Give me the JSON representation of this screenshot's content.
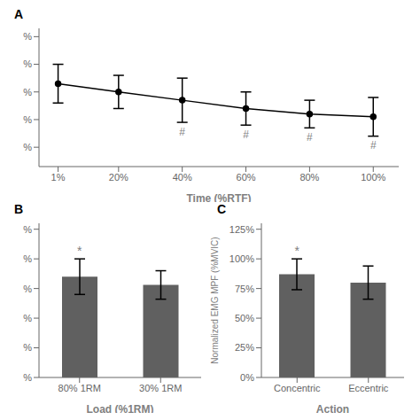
{
  "chart_data": [
    {
      "type": "line",
      "title": "A",
      "x": [
        1,
        20,
        40,
        60,
        80,
        100
      ],
      "values": [
        88,
        85,
        82,
        79,
        77,
        76
      ],
      "errors": [
        7,
        6,
        8,
        6,
        5,
        7
      ],
      "color": "#000000",
      "marker": "circle",
      "xlabel": "Time (%RTF)",
      "xlim": [
        -5,
        108
      ],
      "xticks": [
        {
          "value": 1,
          "label": "1%"
        },
        {
          "value": 20,
          "label": "20%"
        },
        {
          "value": 40,
          "label": "40%"
        },
        {
          "value": 60,
          "label": "60%"
        },
        {
          "value": 80,
          "label": "80%"
        },
        {
          "value": 100,
          "label": "100%"
        }
      ],
      "ylim": [
        58,
        108
      ],
      "yticks": [
        {
          "value": 65,
          "label": "%"
        },
        {
          "value": 75,
          "label": "%"
        },
        {
          "value": 85,
          "label": "%"
        },
        {
          "value": 95,
          "label": "%"
        },
        {
          "value": 105,
          "label": "%"
        }
      ],
      "annotations": [
        {
          "x": 40,
          "text": "#"
        },
        {
          "x": 60,
          "text": "#"
        },
        {
          "x": 80,
          "text": "#"
        },
        {
          "x": 100,
          "text": "#"
        }
      ]
    },
    {
      "type": "bar",
      "title": "B",
      "categories": [
        "80% 1RM",
        "30% 1RM"
      ],
      "values": [
        85,
        78
      ],
      "errors": [
        15,
        12
      ],
      "color": "#606060",
      "xlabel": "Load (%1RM)",
      "ylim": [
        0,
        130
      ],
      "yticks": [
        {
          "value": 0,
          "label": "%"
        },
        {
          "value": 25,
          "label": "%"
        },
        {
          "value": 50,
          "label": "%"
        },
        {
          "value": 75,
          "label": "%"
        },
        {
          "value": 100,
          "label": "%"
        },
        {
          "value": 125,
          "label": "%"
        }
      ],
      "annotations": [
        {
          "category": "80% 1RM",
          "text": "*"
        }
      ]
    },
    {
      "type": "bar",
      "title": "C",
      "categories": [
        "Concentric",
        "Eccentric"
      ],
      "values": [
        87,
        80
      ],
      "errors": [
        13,
        14
      ],
      "color": "#606060",
      "xlabel": "Action",
      "ylabel": "Normalized EMG MPF (%MVIC)",
      "ylim": [
        0,
        130
      ],
      "yticks": [
        {
          "value": 0,
          "label": "0%"
        },
        {
          "value": 25,
          "label": "25%"
        },
        {
          "value": 50,
          "label": "50%"
        },
        {
          "value": 75,
          "label": "75%"
        },
        {
          "value": 100,
          "label": "100%"
        },
        {
          "value": 125,
          "label": "125%"
        }
      ],
      "annotations": [
        {
          "category": "Concentric",
          "text": "*"
        }
      ]
    }
  ]
}
